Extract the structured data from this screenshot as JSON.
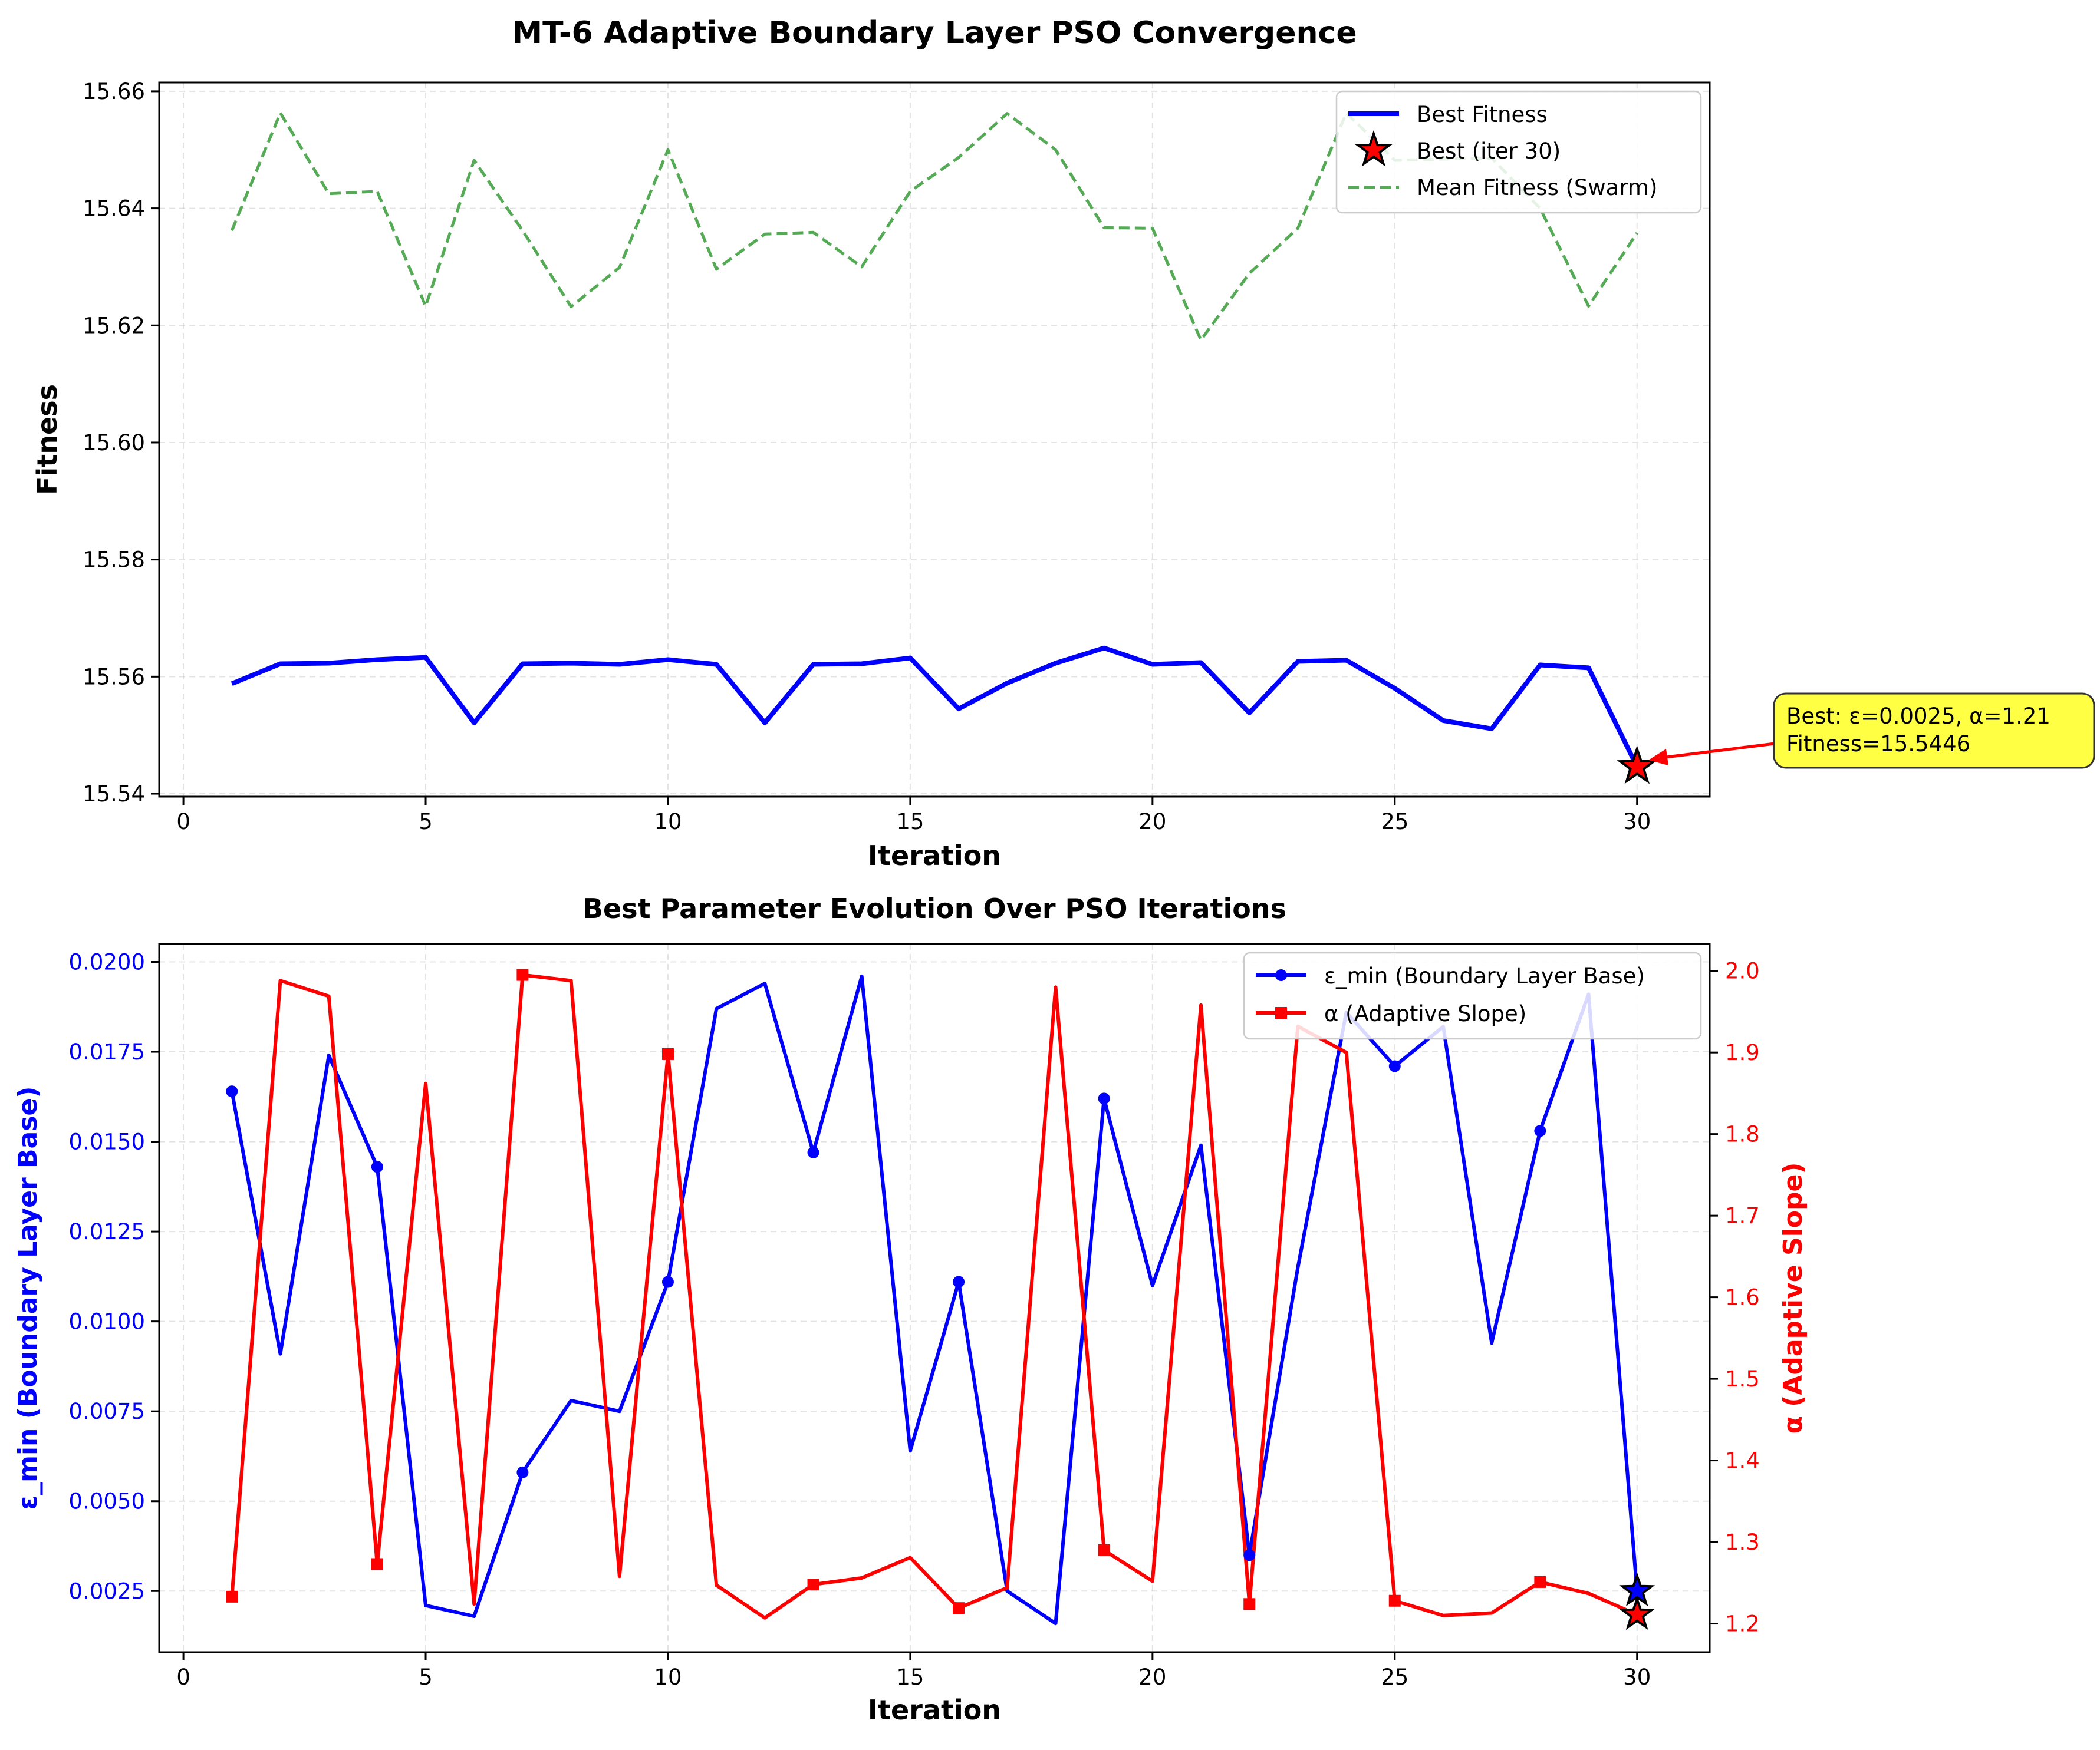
{
  "suptitle": "MT-6 Adaptive Boundary Layer PSO Convergence",
  "chart_data": [
    {
      "type": "line",
      "title": "",
      "xlabel": "Iteration",
      "ylabel": "Fitness",
      "xlim": [
        -0.5,
        31.5
      ],
      "ylim": [
        15.5395,
        15.6615
      ],
      "xticks": [
        0,
        5,
        10,
        15,
        20,
        25,
        30
      ],
      "yticks": [
        15.54,
        15.56,
        15.58,
        15.6,
        15.62,
        15.64,
        15.66
      ],
      "grid": true,
      "legend_position": "top-right",
      "x": [
        1,
        2,
        3,
        4,
        5,
        6,
        7,
        8,
        9,
        10,
        11,
        12,
        13,
        14,
        15,
        16,
        17,
        18,
        19,
        20,
        21,
        22,
        23,
        24,
        25,
        26,
        27,
        28,
        29,
        30
      ],
      "series": [
        {
          "name": "Best Fitness",
          "color": "#0000ff",
          "style": "solid",
          "values": [
            15.5588,
            15.5622,
            15.5623,
            15.5629,
            15.5633,
            15.5521,
            15.5622,
            15.5623,
            15.5621,
            15.5629,
            15.5621,
            15.5521,
            15.5621,
            15.5622,
            15.5632,
            15.5545,
            15.5589,
            15.5623,
            15.5649,
            15.5621,
            15.5624,
            15.5538,
            15.5626,
            15.5628,
            15.558,
            15.5525,
            15.5511,
            15.562,
            15.5615,
            15.5446
          ]
        },
        {
          "name": "Mean Fitness (Swarm)",
          "color": "#55aa55",
          "style": "dashed",
          "values": [
            15.6362,
            15.6563,
            15.6425,
            15.6429,
            15.6233,
            15.6482,
            15.6362,
            15.6232,
            15.6299,
            15.65,
            15.6296,
            15.6356,
            15.6359,
            15.63,
            15.6429,
            15.6487,
            15.6562,
            15.65,
            15.6367,
            15.6366,
            15.6175,
            15.6289,
            15.6366,
            15.6563,
            15.6482,
            15.6484,
            15.6486,
            15.64,
            15.6233,
            15.6358
          ]
        }
      ],
      "markers": [
        {
          "name": "Best (iter 30)",
          "x": 30,
          "y": 15.5446,
          "color": "#ff0000",
          "shape": "star"
        }
      ],
      "annotation": {
        "line1": "Best: ε=0.0025, α=1.21",
        "line2": "Fitness=15.5446",
        "x": 30,
        "y": 15.5446,
        "box_color": "#ffff44",
        "arrow_color": "#ff0000"
      }
    },
    {
      "type": "line",
      "title": "Best Parameter Evolution Over PSO Iterations",
      "xlabel": "Iteration",
      "ylabel_left": "ε_min (Boundary Layer Base)",
      "ylabel_right": "α (Adaptive Slope)",
      "xlim": [
        -0.5,
        31.5
      ],
      "ylim_left": [
        0.0008,
        0.0205
      ],
      "ylim_right": [
        1.165,
        2.033
      ],
      "xticks": [
        0,
        5,
        10,
        15,
        20,
        25,
        30
      ],
      "yticks_left": [
        0.0025,
        0.005,
        0.0075,
        0.01,
        0.0125,
        0.015,
        0.0175,
        0.02
      ],
      "yticks_left_labels": [
        "0.0025",
        "0.0050",
        "0.0075",
        "0.0100",
        "0.0125",
        "0.0150",
        "0.0175",
        "0.0200"
      ],
      "yticks_right": [
        1.2,
        1.3,
        1.4,
        1.5,
        1.6,
        1.7,
        1.8,
        1.9,
        2.0
      ],
      "yticks_right_labels": [
        "1.2",
        "1.3",
        "1.4",
        "1.5",
        "1.6",
        "1.7",
        "1.8",
        "1.9",
        "2.0"
      ],
      "grid": true,
      "legend_position": "top-right",
      "x": [
        1,
        2,
        3,
        4,
        5,
        6,
        7,
        8,
        9,
        10,
        11,
        12,
        13,
        14,
        15,
        16,
        17,
        18,
        19,
        20,
        21,
        22,
        23,
        24,
        25,
        26,
        27,
        28,
        29,
        30
      ],
      "series": [
        {
          "name": "ε_min (Boundary Layer Base)",
          "color": "#0000ff",
          "axis": "left",
          "marker": "circle",
          "values": [
            0.0164,
            0.0091,
            0.0174,
            0.0143,
            0.0021,
            0.0018,
            0.0058,
            0.0078,
            0.0075,
            0.0111,
            0.0187,
            0.0194,
            0.0147,
            0.0196,
            0.0064,
            0.0111,
            0.0025,
            0.0016,
            0.0162,
            0.011,
            0.0149,
            0.0035,
            0.0115,
            0.0186,
            0.0171,
            0.0182,
            0.0094,
            0.0153,
            0.0191,
            0.0025
          ]
        },
        {
          "name": "α (Adaptive Slope)",
          "color": "#ff0000",
          "axis": "right",
          "marker": "square",
          "values": [
            1.233,
            1.988,
            1.969,
            1.273,
            1.862,
            1.224,
            1.995,
            1.988,
            1.258,
            1.898,
            1.247,
            1.207,
            1.248,
            1.256,
            1.281,
            1.219,
            1.244,
            1.98,
            1.29,
            1.252,
            1.958,
            1.224,
            1.932,
            1.9,
            1.228,
            1.21,
            1.213,
            1.251,
            1.237,
            1.211
          ]
        }
      ],
      "markers": [
        {
          "x": 30,
          "y": 0.0025,
          "axis": "left",
          "color": "#0000ff",
          "shape": "star"
        },
        {
          "x": 30,
          "y": 1.211,
          "axis": "right",
          "color": "#ff0000",
          "shape": "star"
        }
      ]
    }
  ]
}
